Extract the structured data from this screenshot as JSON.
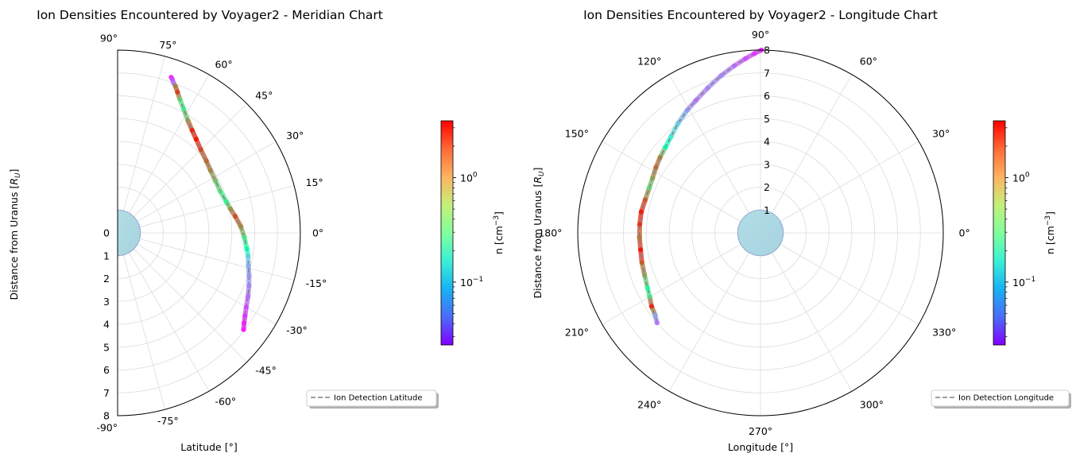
{
  "chart_data": [
    {
      "type": "scatter",
      "projection": "polar-half",
      "title": "Ion Densities Encountered by Voyager2 - Meridian Chart",
      "xlabel": "Latitude [°]",
      "ylabel": "Distance from Uranus [R_U]",
      "ylabel_text": "Distance from Uranus [",
      "ylabel_sub": "U",
      "ylabel_end": "]",
      "theta_range_deg": [
        -90,
        90
      ],
      "r_range": [
        0,
        8
      ],
      "theta_ticks": [
        "-90°",
        "-75°",
        "-60°",
        "-45°",
        "-30°",
        "-15°",
        "0°",
        "15°",
        "30°",
        "45°",
        "60°",
        "75°",
        "90°"
      ],
      "r_ticks": [
        "0",
        "1",
        "2",
        "3",
        "4",
        "5",
        "6",
        "7",
        "8"
      ],
      "grid": true,
      "planet_radius": 1,
      "legend": {
        "label": "Ion Detection Latitude",
        "placement": "lower-right, outside"
      },
      "colorbar": {
        "label": "n [cm",
        "label_sup": "−3",
        "label_end": "]",
        "scale": "log",
        "range": [
          0.025,
          3.5
        ],
        "ticks": [
          "10",
          "10"
        ],
        "tick_exps": [
          "−1",
          "0"
        ],
        "tick_values": [
          0.1,
          1.0
        ]
      },
      "series": [
        {
          "points": [
            {
              "lat": 71.0,
              "r": 7.2,
              "n": 0.03
            },
            {
              "lat": 70.5,
              "r": 7.15,
              "n": 0.04
            },
            {
              "lat": 69.5,
              "r": 7.0,
              "n": 0.05
            },
            {
              "lat": 68.5,
              "r": 6.9,
              "n": 1.5
            },
            {
              "lat": 67.0,
              "r": 6.7,
              "n": 2.5
            },
            {
              "lat": 65.0,
              "r": 6.45,
              "n": 0.8
            },
            {
              "lat": 62.0,
              "r": 6.15,
              "n": 0.5
            },
            {
              "lat": 58.0,
              "r": 5.8,
              "n": 1.2
            },
            {
              "lat": 54.0,
              "r": 5.55,
              "n": 2.8
            },
            {
              "lat": 50.0,
              "r": 5.35,
              "n": 3.2
            },
            {
              "lat": 45.0,
              "r": 5.15,
              "n": 2.2
            },
            {
              "lat": 39.0,
              "r": 5.0,
              "n": 1.8
            },
            {
              "lat": 34.0,
              "r": 4.9,
              "n": 1.5
            },
            {
              "lat": 28.0,
              "r": 4.85,
              "n": 0.9
            },
            {
              "lat": 22.0,
              "r": 4.85,
              "n": 0.7
            },
            {
              "lat": 16.0,
              "r": 4.95,
              "n": 0.45
            },
            {
              "lat": 12.0,
              "r": 5.05,
              "n": 1.3
            },
            {
              "lat": 8.0,
              "r": 5.2,
              "n": 2.2
            },
            {
              "lat": 3.0,
              "r": 5.4,
              "n": 1.5
            },
            {
              "lat": -2.0,
              "r": 5.55,
              "n": 0.6
            },
            {
              "lat": -7.0,
              "r": 5.7,
              "n": 0.3
            },
            {
              "lat": -10.0,
              "r": 5.8,
              "n": 0.12
            },
            {
              "lat": -14.0,
              "r": 5.9,
              "n": 0.08
            },
            {
              "lat": -18.0,
              "r": 6.05,
              "n": 0.07
            },
            {
              "lat": -22.0,
              "r": 6.2,
              "n": 0.06
            },
            {
              "lat": -26.0,
              "r": 6.35,
              "n": 0.05
            },
            {
              "lat": -30.0,
              "r": 6.5,
              "n": 0.04
            },
            {
              "lat": -33.0,
              "r": 6.65,
              "n": 0.035
            },
            {
              "lat": -35.5,
              "r": 6.8,
              "n": 0.03
            },
            {
              "lat": -37.5,
              "r": 6.95,
              "n": 0.028
            }
          ]
        }
      ]
    },
    {
      "type": "scatter",
      "projection": "polar",
      "title": "Ion Densities Encountered by Voyager2 - Longitude Chart",
      "xlabel": "Longitude [°]",
      "ylabel": "Distance from Uranus [R_U]",
      "ylabel_text": "Distance from Uranus [",
      "ylabel_sub": "U",
      "ylabel_end": "]",
      "theta_range_deg": [
        0,
        360
      ],
      "r_range": [
        0,
        8
      ],
      "theta_ticks": [
        "0°",
        "30°",
        "60°",
        "90°",
        "120°",
        "150°",
        "180°",
        "210°",
        "240°",
        "270°",
        "300°",
        "330°"
      ],
      "r_ticks": [
        "1",
        "2",
        "3",
        "4",
        "5",
        "6",
        "7",
        "8"
      ],
      "grid": true,
      "planet_radius": 1,
      "legend": {
        "label": "Ion Detection Longitude",
        "placement": "lower-right, outside"
      },
      "colorbar": {
        "label": "n [cm",
        "label_sup": "−3",
        "label_end": "]",
        "scale": "log",
        "range": [
          0.025,
          3.5
        ],
        "ticks": [
          "10",
          "10"
        ],
        "tick_exps": [
          "−1",
          "0"
        ],
        "tick_values": [
          0.1,
          1.0
        ]
      },
      "series": [
        {
          "points": [
            {
              "lon": 89.7,
              "r": 8.0,
              "n": 0.03
            },
            {
              "lon": 92.0,
              "r": 7.85,
              "n": 0.035
            },
            {
              "lon": 95.0,
              "r": 7.65,
              "n": 0.04
            },
            {
              "lon": 99.0,
              "r": 7.4,
              "n": 0.05
            },
            {
              "lon": 104.0,
              "r": 7.1,
              "n": 0.06
            },
            {
              "lon": 110.0,
              "r": 6.75,
              "n": 0.06
            },
            {
              "lon": 116.0,
              "r": 6.45,
              "n": 0.05
            },
            {
              "lon": 121.0,
              "r": 6.25,
              "n": 0.07
            },
            {
              "lon": 127.0,
              "r": 6.0,
              "n": 0.1
            },
            {
              "lon": 133.0,
              "r": 5.75,
              "n": 0.15
            },
            {
              "lon": 138.0,
              "r": 5.6,
              "n": 0.3
            },
            {
              "lon": 143.0,
              "r": 5.5,
              "n": 1.5
            },
            {
              "lon": 148.0,
              "r": 5.4,
              "n": 1.8
            },
            {
              "lon": 153.0,
              "r": 5.3,
              "n": 1.2
            },
            {
              "lon": 158.0,
              "r": 5.25,
              "n": 0.7
            },
            {
              "lon": 164.0,
              "r": 5.25,
              "n": 2.0
            },
            {
              "lon": 170.0,
              "r": 5.3,
              "n": 3.0
            },
            {
              "lon": 176.0,
              "r": 5.3,
              "n": 2.6
            },
            {
              "lon": 182.0,
              "r": 5.3,
              "n": 1.5
            },
            {
              "lon": 188.0,
              "r": 5.3,
              "n": 3.2
            },
            {
              "lon": 194.0,
              "r": 5.35,
              "n": 2.0
            },
            {
              "lon": 200.0,
              "r": 5.4,
              "n": 1.2
            },
            {
              "lon": 206.0,
              "r": 5.5,
              "n": 0.4
            },
            {
              "lon": 210.0,
              "r": 5.6,
              "n": 0.6
            },
            {
              "lon": 214.0,
              "r": 5.75,
              "n": 3.0
            },
            {
              "lon": 218.0,
              "r": 5.85,
              "n": 0.08
            },
            {
              "lon": 221.0,
              "r": 6.0,
              "n": 0.05
            }
          ]
        }
      ]
    }
  ]
}
